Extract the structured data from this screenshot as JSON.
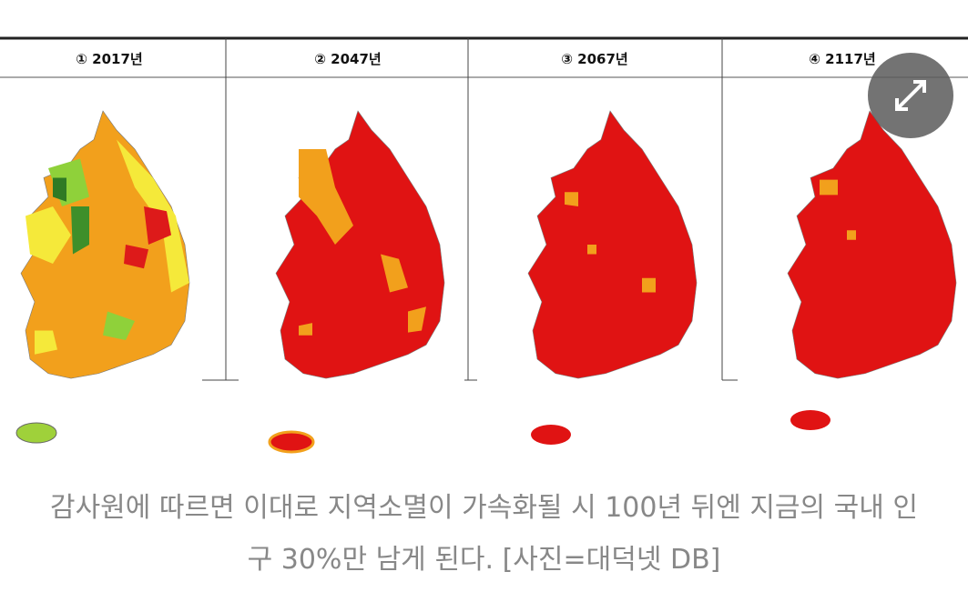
{
  "header": {
    "columns": [
      "① 2017년",
      "② 2047년",
      "③ 2067년",
      "④ 2117년"
    ]
  },
  "caption": {
    "lines": [
      "감사원에 따르면 이대로 지역소멸이 가속화될 시 100년 뒤엔 지금의 국내 인",
      "구 30%만 남게 된다. [사진=대덕넷 DB]"
    ]
  }
}
